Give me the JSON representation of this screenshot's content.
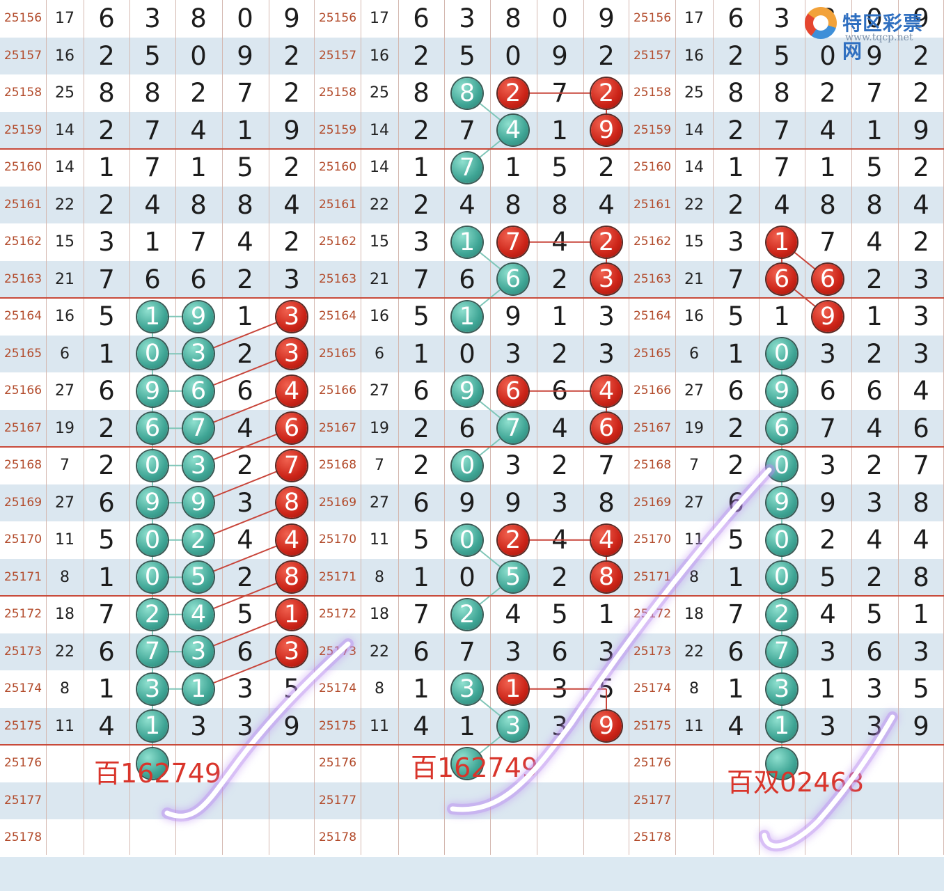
{
  "rows": [
    {
      "issue": "25156",
      "sum": "17",
      "digits": [
        "6",
        "3",
        "8",
        "0",
        "9"
      ]
    },
    {
      "issue": "25157",
      "sum": "16",
      "digits": [
        "2",
        "5",
        "0",
        "9",
        "2"
      ]
    },
    {
      "issue": "25158",
      "sum": "25",
      "digits": [
        "8",
        "8",
        "2",
        "7",
        "2"
      ]
    },
    {
      "issue": "25159",
      "sum": "14",
      "digits": [
        "2",
        "7",
        "4",
        "1",
        "9"
      ]
    },
    {
      "issue": "25160",
      "sum": "14",
      "digits": [
        "1",
        "7",
        "1",
        "5",
        "2"
      ]
    },
    {
      "issue": "25161",
      "sum": "22",
      "digits": [
        "2",
        "4",
        "8",
        "8",
        "4"
      ]
    },
    {
      "issue": "25162",
      "sum": "15",
      "digits": [
        "3",
        "1",
        "7",
        "4",
        "2"
      ]
    },
    {
      "issue": "25163",
      "sum": "21",
      "digits": [
        "7",
        "6",
        "6",
        "2",
        "3"
      ]
    },
    {
      "issue": "25164",
      "sum": "16",
      "digits": [
        "5",
        "1",
        "9",
        "1",
        "3"
      ]
    },
    {
      "issue": "25165",
      "sum": "6",
      "digits": [
        "1",
        "0",
        "3",
        "2",
        "3"
      ]
    },
    {
      "issue": "25166",
      "sum": "27",
      "digits": [
        "6",
        "9",
        "6",
        "6",
        "4"
      ]
    },
    {
      "issue": "25167",
      "sum": "19",
      "digits": [
        "2",
        "6",
        "7",
        "4",
        "6"
      ]
    },
    {
      "issue": "25168",
      "sum": "7",
      "digits": [
        "2",
        "0",
        "3",
        "2",
        "7"
      ]
    },
    {
      "issue": "25169",
      "sum": "27",
      "digits": [
        "6",
        "9",
        "9",
        "3",
        "8"
      ]
    },
    {
      "issue": "25170",
      "sum": "11",
      "digits": [
        "5",
        "0",
        "2",
        "4",
        "4"
      ]
    },
    {
      "issue": "25171",
      "sum": "8",
      "digits": [
        "1",
        "0",
        "5",
        "2",
        "8"
      ]
    },
    {
      "issue": "25172",
      "sum": "18",
      "digits": [
        "7",
        "2",
        "4",
        "5",
        "1"
      ]
    },
    {
      "issue": "25173",
      "sum": "22",
      "digits": [
        "6",
        "7",
        "3",
        "6",
        "3"
      ]
    },
    {
      "issue": "25174",
      "sum": "8",
      "digits": [
        "1",
        "3",
        "1",
        "3",
        "5"
      ]
    },
    {
      "issue": "25175",
      "sum": "11",
      "digits": [
        "4",
        "1",
        "3",
        "3",
        "9"
      ]
    },
    {
      "issue": "25176",
      "sum": "",
      "digits": [
        "",
        "",
        "",
        "",
        ""
      ]
    },
    {
      "issue": "25177",
      "sum": "",
      "digits": [
        "",
        "",
        "",
        "",
        ""
      ]
    },
    {
      "issue": "25178",
      "sum": "",
      "digits": [
        "",
        "",
        "",
        "",
        ""
      ]
    }
  ],
  "notes": {
    "panel1": "百162749",
    "panel2": "百162749",
    "panel3": "百双02468"
  },
  "logo": {
    "name": "特区彩票网",
    "url": "www.tqcp.net"
  },
  "colors": {
    "ball_green": "#3fa595",
    "ball_red": "#cc2418",
    "row_alt": "#dbe7f0",
    "separator": "#c84a3a",
    "issue_text": "#b24a2a",
    "highlight_stroke": "#b98cf0"
  }
}
